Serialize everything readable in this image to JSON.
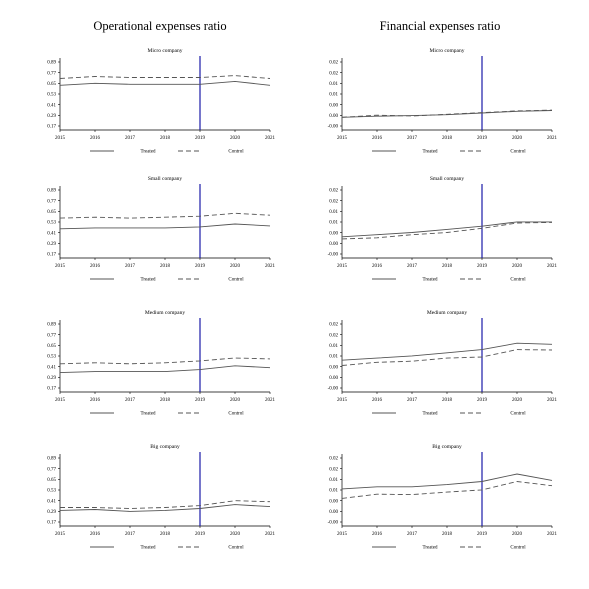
{
  "column_titles": [
    "Operational expenses ratio",
    "Financial expenses ratio"
  ],
  "chart_data": [
    {
      "type": "line",
      "column": "Operational expenses ratio",
      "title": "Micro company",
      "x": [
        2015,
        2016,
        2017,
        2018,
        2019,
        2020,
        2021
      ],
      "yticks": [
        "0.17",
        "0.29",
        "0.41",
        "0.53",
        "0.65",
        "0.77",
        "0.89"
      ],
      "ylim": [
        0.17,
        0.89
      ],
      "vline": 2019,
      "series": [
        {
          "name": "Treated",
          "style": "solid",
          "values": [
            0.63,
            0.65,
            0.64,
            0.64,
            0.64,
            0.67,
            0.63
          ]
        },
        {
          "name": "Control",
          "style": "dashed",
          "values": [
            0.7,
            0.72,
            0.71,
            0.71,
            0.71,
            0.73,
            0.7
          ]
        }
      ]
    },
    {
      "type": "line",
      "column": "Financial expenses ratio",
      "title": "Micro company",
      "x": [
        2015,
        2016,
        2017,
        2018,
        2019,
        2020,
        2021
      ],
      "yticks": [
        "-0.00",
        "0.00",
        "0.00",
        "0.01",
        "0.01",
        "0.02",
        "0.02"
      ],
      "ylim": [
        -0.003,
        0.03
      ],
      "vline": 2019,
      "series": [
        {
          "name": "Treated",
          "style": "solid",
          "values": [
            0.003,
            0.0035,
            0.0038,
            0.0042,
            0.005,
            0.0058,
            0.0062
          ]
        },
        {
          "name": "Control",
          "style": "dashed",
          "values": [
            0.003,
            0.004,
            0.0036,
            0.0044,
            0.0052,
            0.006,
            0.0064
          ]
        }
      ]
    },
    {
      "type": "line",
      "column": "Operational expenses ratio",
      "title": "Small company",
      "x": [
        2015,
        2016,
        2017,
        2018,
        2019,
        2020,
        2021
      ],
      "yticks": [
        "0.17",
        "0.29",
        "0.41",
        "0.53",
        "0.65",
        "0.77",
        "0.89"
      ],
      "ylim": [
        0.17,
        0.89
      ],
      "vline": 2019,
      "series": [
        {
          "name": "Treated",
          "style": "solid",
          "values": [
            0.47,
            0.48,
            0.48,
            0.48,
            0.49,
            0.52,
            0.5
          ]
        },
        {
          "name": "Control",
          "style": "dashed",
          "values": [
            0.58,
            0.59,
            0.58,
            0.59,
            0.6,
            0.63,
            0.61
          ]
        }
      ]
    },
    {
      "type": "line",
      "column": "Financial expenses ratio",
      "title": "Small company",
      "x": [
        2015,
        2016,
        2017,
        2018,
        2019,
        2020,
        2021
      ],
      "yticks": [
        "-0.00",
        "0.00",
        "0.00",
        "0.01",
        "0.01",
        "0.02",
        "0.02"
      ],
      "ylim": [
        -0.003,
        0.03
      ],
      "vline": 2019,
      "series": [
        {
          "name": "Treated",
          "style": "solid",
          "values": [
            0.007,
            0.008,
            0.009,
            0.0105,
            0.012,
            0.014,
            0.014
          ]
        },
        {
          "name": "Control",
          "style": "dashed",
          "values": [
            0.006,
            0.0065,
            0.008,
            0.009,
            0.011,
            0.0135,
            0.0138
          ]
        }
      ]
    },
    {
      "type": "line",
      "column": "Operational expenses ratio",
      "title": "Medium company",
      "x": [
        2015,
        2016,
        2017,
        2018,
        2019,
        2020,
        2021
      ],
      "yticks": [
        "0.17",
        "0.29",
        "0.41",
        "0.53",
        "0.65",
        "0.77",
        "0.89"
      ],
      "ylim": [
        0.17,
        0.89
      ],
      "vline": 2019,
      "series": [
        {
          "name": "Treated",
          "style": "solid",
          "values": [
            0.37,
            0.38,
            0.38,
            0.38,
            0.4,
            0.44,
            0.42
          ]
        },
        {
          "name": "Control",
          "style": "dashed",
          "values": [
            0.46,
            0.47,
            0.46,
            0.47,
            0.49,
            0.52,
            0.51
          ]
        }
      ]
    },
    {
      "type": "line",
      "column": "Financial expenses ratio",
      "title": "Medium company",
      "x": [
        2015,
        2016,
        2017,
        2018,
        2019,
        2020,
        2021
      ],
      "yticks": [
        "-0.00",
        "0.00",
        "0.00",
        "0.01",
        "0.01",
        "0.02",
        "0.02"
      ],
      "ylim": [
        -0.003,
        0.03
      ],
      "vline": 2019,
      "series": [
        {
          "name": "Treated",
          "style": "solid",
          "values": [
            0.012,
            0.013,
            0.014,
            0.0155,
            0.017,
            0.02,
            0.0195
          ]
        },
        {
          "name": "Control",
          "style": "dashed",
          "values": [
            0.0095,
            0.011,
            0.0115,
            0.013,
            0.0135,
            0.017,
            0.0168
          ]
        }
      ]
    },
    {
      "type": "line",
      "column": "Operational expenses ratio",
      "title": "Big company",
      "x": [
        2015,
        2016,
        2017,
        2018,
        2019,
        2020,
        2021
      ],
      "yticks": [
        "0.17",
        "0.29",
        "0.41",
        "0.53",
        "0.65",
        "0.77",
        "0.89"
      ],
      "ylim": [
        0.17,
        0.89
      ],
      "vline": 2019,
      "series": [
        {
          "name": "Treated",
          "style": "solid",
          "values": [
            0.33,
            0.34,
            0.32,
            0.33,
            0.35,
            0.39,
            0.37
          ]
        },
        {
          "name": "Control",
          "style": "dashed",
          "values": [
            0.36,
            0.36,
            0.35,
            0.36,
            0.38,
            0.43,
            0.42
          ]
        }
      ]
    },
    {
      "type": "line",
      "column": "Financial expenses ratio",
      "title": "Big company",
      "x": [
        2015,
        2016,
        2017,
        2018,
        2019,
        2020,
        2021
      ],
      "yticks": [
        "-0.00",
        "0.00",
        "0.00",
        "0.01",
        "0.01",
        "0.02",
        "0.02"
      ],
      "ylim": [
        -0.003,
        0.03
      ],
      "vline": 2019,
      "series": [
        {
          "name": "Treated",
          "style": "solid",
          "values": [
            0.0145,
            0.0155,
            0.0155,
            0.0165,
            0.018,
            0.0215,
            0.0185
          ]
        },
        {
          "name": "Control",
          "style": "dashed",
          "values": [
            0.01,
            0.012,
            0.0118,
            0.013,
            0.014,
            0.018,
            0.016
          ]
        }
      ]
    }
  ],
  "colors": {
    "line": "#555555",
    "vline": "#1a1aa8",
    "axis": "#000000"
  }
}
